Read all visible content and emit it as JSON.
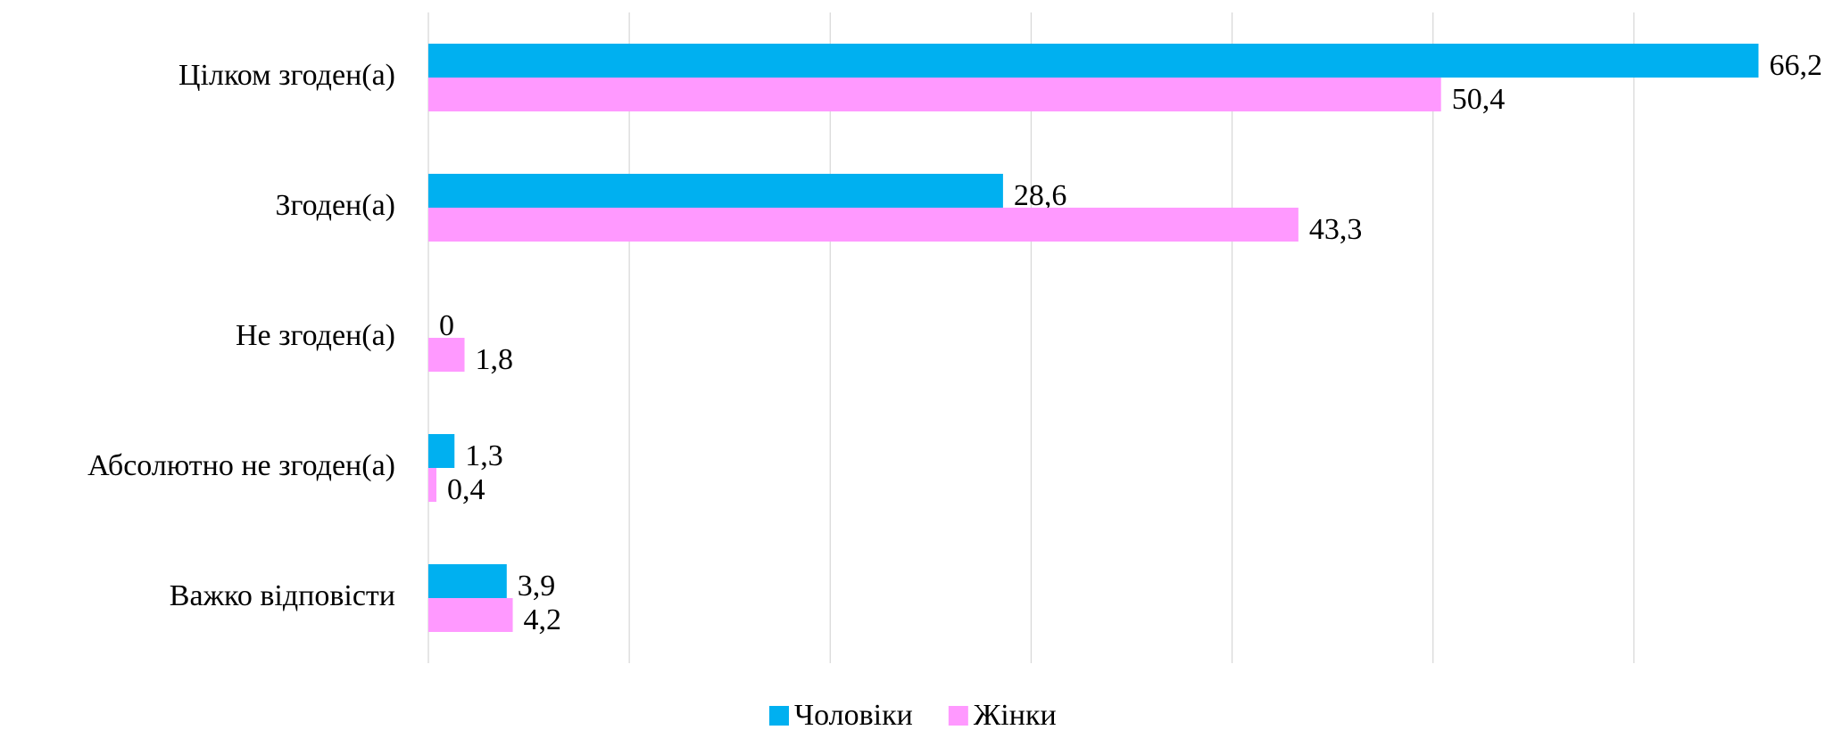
{
  "chart_data": {
    "type": "hbar",
    "categories": [
      "Цілком згоден(а)",
      "Згоден(а)",
      "Не згоден(а)",
      "Абсолютно не згоден(а)",
      "Важко відповісти"
    ],
    "series": [
      {
        "name": "Чоловіки",
        "color": "#00b0f0",
        "values": [
          66.2,
          28.6,
          0,
          1.3,
          3.9
        ],
        "value_labels": [
          "66,2",
          "28,6",
          "0",
          "1,3",
          "3,9"
        ]
      },
      {
        "name": "Жінки",
        "color": "#ff99ff",
        "values": [
          50.4,
          43.3,
          1.8,
          0.4,
          4.2
        ],
        "value_labels": [
          "50,4",
          "43,3",
          "1,8",
          "0,4",
          "4,2"
        ]
      }
    ],
    "xlim": [
      0,
      70
    ],
    "xticks": [
      0,
      10,
      20,
      30,
      40,
      50,
      60
    ],
    "grid": true,
    "legend": "bottom"
  }
}
